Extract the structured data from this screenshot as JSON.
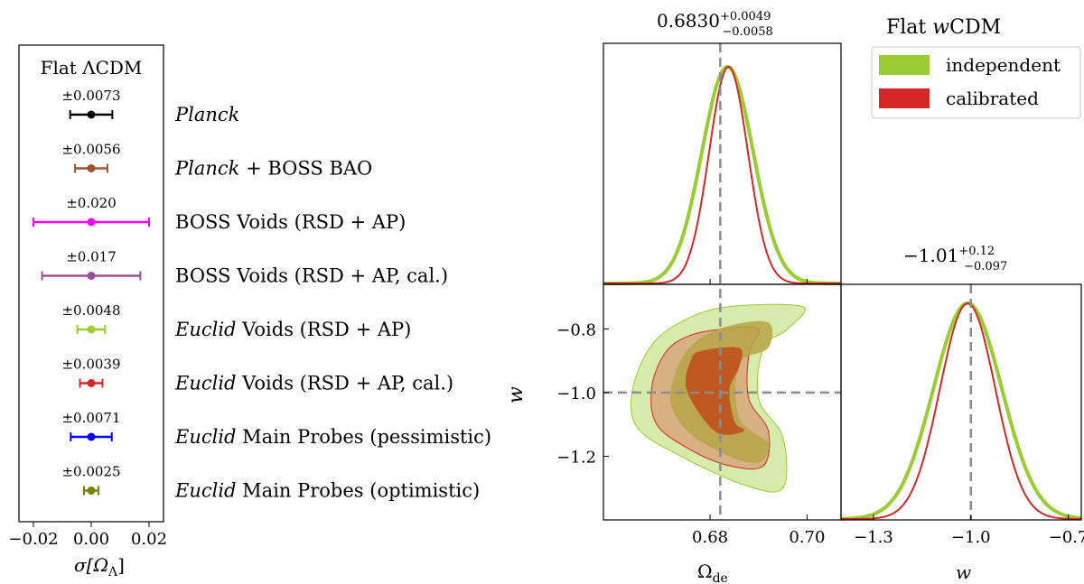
{
  "chart_data": [
    {
      "type": "errorbar",
      "title": "Flat ΛCDM",
      "xlabel": "σ[Ω",
      "xlabel_sub": "Λ",
      "xlabel_close": "]",
      "xlim": [
        -0.025,
        0.025
      ],
      "xticks": [
        -0.02,
        0.0,
        0.02
      ],
      "xtick_labels": [
        "−0.02",
        "0.00",
        "0.02"
      ],
      "rows": [
        {
          "label_italic": "Planck",
          "label_rest": "",
          "sigma": 0.0073,
          "sigma_label": "±0.0073",
          "color": "#000000"
        },
        {
          "label_italic": "Planck",
          "label_rest": " + BOSS BAO",
          "sigma": 0.0056,
          "sigma_label": "±0.0056",
          "color": "#a0522d"
        },
        {
          "label_italic": "",
          "label_rest": "BOSS Voids (RSD + AP)",
          "sigma": 0.02,
          "sigma_label": "±0.020",
          "color": "#ff00ff"
        },
        {
          "label_italic": "",
          "label_rest": "BOSS Voids (RSD + AP,  cal.)",
          "sigma": 0.017,
          "sigma_label": "±0.017",
          "color": "#9b4f9b"
        },
        {
          "label_italic": "Euclid",
          "label_rest": " Voids (RSD + AP)",
          "sigma": 0.0048,
          "sigma_label": "±0.0048",
          "color": "#9acd32"
        },
        {
          "label_italic": "Euclid",
          "label_rest": " Voids (RSD + AP,  cal.)",
          "sigma": 0.0039,
          "sigma_label": "±0.0039",
          "color": "#d62728"
        },
        {
          "label_italic": "Euclid",
          "label_rest": " Main Probes (pessimistic)",
          "sigma": 0.0071,
          "sigma_label": "±0.0071",
          "color": "#0000ff"
        },
        {
          "label_italic": "Euclid",
          "label_rest": " Main Probes (optimistic)",
          "sigma": 0.0025,
          "sigma_label": "±0.0025",
          "color": "#808000"
        }
      ]
    },
    {
      "type": "corner",
      "title": "Flat wCDM",
      "legend": [
        {
          "name": "independent",
          "color": "#9acd32"
        },
        {
          "name": "calibrated",
          "color": "#d62728"
        }
      ],
      "params": [
        {
          "name": "Ω_de",
          "label": "Ω",
          "label_sub": "de",
          "range": [
            0.658,
            0.707
          ],
          "truth": 0.6821,
          "ticks": [
            0.68,
            0.7
          ],
          "tick_labels": [
            "0.68",
            "0.70"
          ],
          "summary": {
            "value": "0.6830",
            "plus": "+0.0049",
            "minus": "−0.0058"
          },
          "independent": {
            "mean": 0.6836,
            "sigma": 0.0053
          },
          "calibrated": {
            "mean": 0.6838,
            "sigma": 0.004
          }
        },
        {
          "name": "w",
          "label": "w",
          "range": [
            -1.4,
            -0.66
          ],
          "truth": -1.0,
          "ticks": [
            -1.3,
            -1.0,
            -0.7
          ],
          "tick_labels": [
            "−1.3",
            "−1.0",
            "−0.7"
          ],
          "ticks_y": [
            -0.8,
            -1.0,
            -1.2
          ],
          "tick_labels_y": [
            "−0.8",
            "−1.0",
            "−1.2"
          ],
          "summary": {
            "value": "−1.01",
            "plus": "+0.12",
            "minus": "−0.097"
          },
          "independent": {
            "mean": -1.01,
            "sigma": 0.105
          },
          "calibrated": {
            "mean": -1.01,
            "sigma": 0.085
          }
        }
      ],
      "contours_2d": {
        "independent": {
          "color": "#9acd32",
          "inner": [
            [
              0.684,
              -0.79
            ],
            [
              0.692,
              -0.78
            ],
            [
              0.692,
              -0.86
            ],
            [
              0.686,
              -0.91
            ],
            [
              0.686,
              -1.08
            ],
            [
              0.692,
              -1.16
            ],
            [
              0.69,
              -1.22
            ],
            [
              0.684,
              -1.2
            ],
            [
              0.676,
              -1.13
            ],
            [
              0.672,
              -1.04
            ],
            [
              0.673,
              -0.93
            ],
            [
              0.677,
              -0.84
            ]
          ],
          "outer": [
            [
              0.684,
              -0.73
            ],
            [
              0.699,
              -0.73
            ],
            [
              0.696,
              -0.8
            ],
            [
              0.691,
              -0.86
            ],
            [
              0.69,
              -1.02
            ],
            [
              0.695,
              -1.14
            ],
            [
              0.695,
              -1.3
            ],
            [
              0.687,
              -1.29
            ],
            [
              0.674,
              -1.2
            ],
            [
              0.665,
              -1.11
            ],
            [
              0.664,
              -0.99
            ],
            [
              0.668,
              -0.85
            ],
            [
              0.675,
              -0.77
            ]
          ]
        },
        "calibrated": {
          "color": "#d62728",
          "inner": [
            [
              0.678,
              -0.87
            ],
            [
              0.686,
              -0.86
            ],
            [
              0.686,
              -0.92
            ],
            [
              0.684,
              -0.99
            ],
            [
              0.685,
              -1.09
            ],
            [
              0.687,
              -1.12
            ],
            [
              0.682,
              -1.13
            ],
            [
              0.678,
              -1.07
            ],
            [
              0.675,
              -0.98
            ],
            [
              0.676,
              -0.9
            ]
          ],
          "outer": [
            [
              0.683,
              -0.8
            ],
            [
              0.69,
              -0.8
            ],
            [
              0.688,
              -0.88
            ],
            [
              0.688,
              -1.02
            ],
            [
              0.692,
              -1.12
            ],
            [
              0.691,
              -1.23
            ],
            [
              0.684,
              -1.23
            ],
            [
              0.676,
              -1.18
            ],
            [
              0.669,
              -1.1
            ],
            [
              0.668,
              -0.98
            ],
            [
              0.671,
              -0.87
            ],
            [
              0.676,
              -0.82
            ]
          ]
        }
      }
    }
  ]
}
